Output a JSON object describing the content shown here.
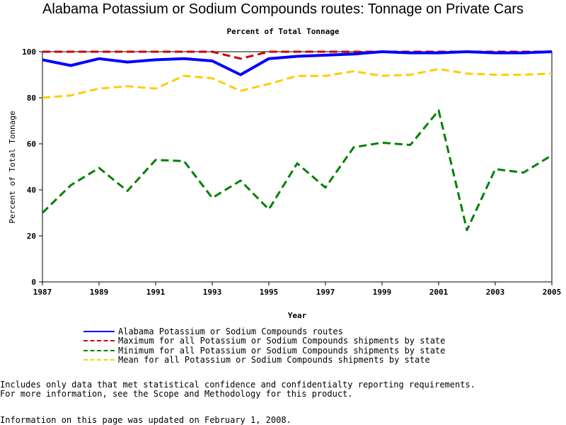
{
  "chart_data": {
    "type": "line",
    "title": "Alabama Potassium or Sodium Compounds routes: Tonnage on Private Cars",
    "subtitle": "Percent of Total Tonnage",
    "xlabel": "Year",
    "ylabel": "Percent of Total Tonnage",
    "xlim": [
      1987,
      2005
    ],
    "ylim": [
      0,
      100
    ],
    "x_ticks": [
      "1987",
      "1989",
      "1991",
      "1993",
      "1995",
      "1997",
      "1999",
      "2001",
      "2003",
      "2005"
    ],
    "y_ticks": [
      "0",
      "20",
      "40",
      "60",
      "80",
      "100"
    ],
    "grid": false,
    "legend_position": "bottom",
    "x": [
      1987,
      1988,
      1989,
      1990,
      1991,
      1992,
      1993,
      1994,
      1995,
      1996,
      1997,
      1998,
      1999,
      2000,
      2001,
      2002,
      2003,
      2004,
      2005
    ],
    "series": [
      {
        "name": "Alabama Potassium or Sodium Compounds routes",
        "color": "#0000ff",
        "style": "solid",
        "values": [
          96.5,
          94,
          97,
          95.5,
          96.5,
          97,
          96,
          90,
          97,
          98,
          98.5,
          99,
          100,
          99.5,
          99.5,
          100,
          99.5,
          99.5,
          100
        ]
      },
      {
        "name": "Maximum for all Potassium or Sodium Compounds shipments by state",
        "color": "#cc0000",
        "style": "dashed",
        "values": [
          100,
          100,
          100,
          100,
          100,
          100,
          100,
          97,
          100,
          100,
          100,
          100,
          100,
          100,
          100,
          100,
          100,
          100,
          100
        ]
      },
      {
        "name": "Minimum for all Potassium or Sodium Compounds shipments by state",
        "color": "#008000",
        "style": "dashed",
        "values": [
          30,
          42,
          49.5,
          39.5,
          53,
          52.5,
          36.5,
          44,
          31.5,
          51.5,
          41,
          58.5,
          60.5,
          59.5,
          74.5,
          22.5,
          49,
          47.5,
          55
        ]
      },
      {
        "name": "Mean for all Potassium or Sodium Compounds shipments by state",
        "color": "#ffcc00",
        "style": "dashed",
        "values": [
          80,
          81,
          84,
          85,
          84,
          89.5,
          88.5,
          83,
          86,
          89.5,
          89.5,
          91.5,
          89.5,
          90,
          92.5,
          90.5,
          90,
          90,
          90.5
        ]
      }
    ]
  },
  "notes": {
    "line1": "Includes only data that met statistical confidence and confidentialty reporting requirements.",
    "line2": "For more information, see the Scope and Methodology for this product.",
    "updated": "Information on this page was updated on February 1, 2008."
  }
}
